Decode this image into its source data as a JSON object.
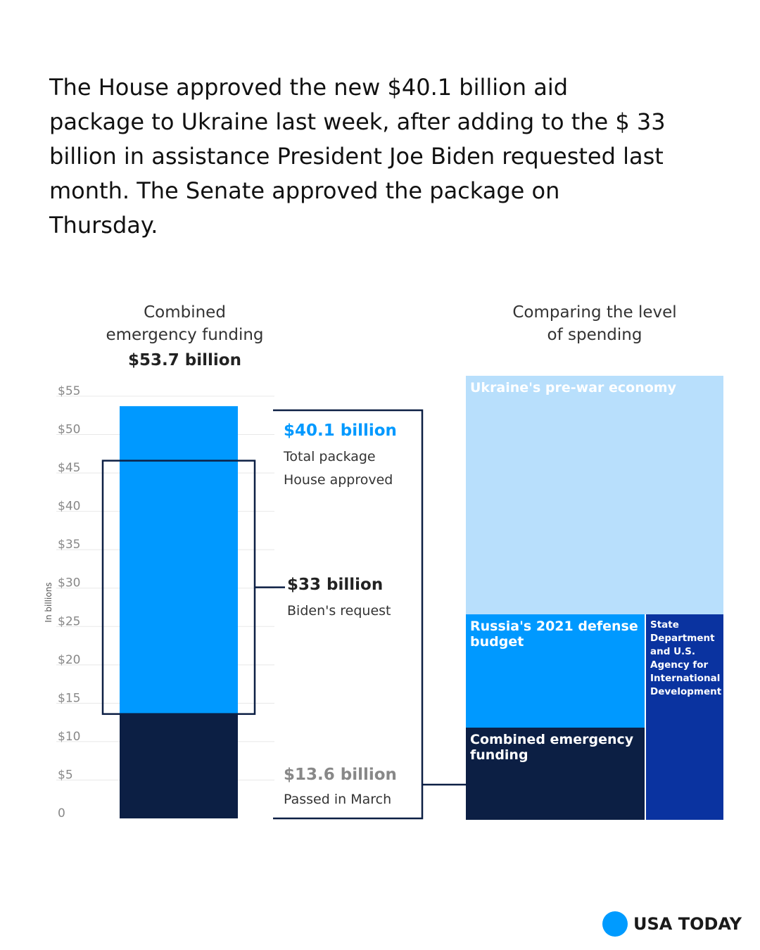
{
  "intro": "The House approved the new $40.1 billion aid package to Ukraine last week, after adding to the $ 33 billion in assistance President Joe Biden requested last month. The Senate approved the package on Thursday.",
  "chart_data": [
    {
      "type": "bar",
      "title_lines": [
        "Combined",
        "emergency funding"
      ],
      "title_value": "$53.7 billion",
      "ylabel": "In billions",
      "ylim": [
        0,
        55
      ],
      "yticks": [
        0,
        5,
        10,
        15,
        20,
        25,
        30,
        35,
        40,
        45,
        50,
        55
      ],
      "ytick_labels": [
        "0",
        "$5",
        "$10",
        "$15",
        "$20",
        "$25",
        "$30",
        "$35",
        "$40",
        "$45",
        "$50",
        "$55"
      ],
      "series": [
        {
          "name": "Passed in March",
          "value": 13.6,
          "color": "#0c1f44"
        },
        {
          "name": "Total package House approved",
          "value": 40.1,
          "color": "#0099ff"
        }
      ],
      "biden_request": {
        "from": 13.6,
        "to": 46.6,
        "value": 33
      },
      "annotations": {
        "house": {
          "value": "$40.1 billion",
          "l1": "Total package",
          "l2": "House approved"
        },
        "biden": {
          "value": "$33 billion",
          "l1": "Biden's request"
        },
        "march": {
          "value": "$13.6 billion",
          "l1": "Passed in March"
        }
      }
    },
    {
      "type": "treemap",
      "title_lines": [
        "Comparing the level",
        "of spending"
      ],
      "cells": [
        {
          "label": "Ukraine's pre-war economy",
          "color": "#b8dffc"
        },
        {
          "label": "Russia's 2021 defense budget",
          "color": "#0099ff"
        },
        {
          "label": "Combined emergency funding",
          "color": "#0c1f44"
        },
        {
          "label": "State Department and U.S. Agency for International Development",
          "color": "#0a33a0"
        }
      ]
    }
  ],
  "brand": "USA TODAY"
}
